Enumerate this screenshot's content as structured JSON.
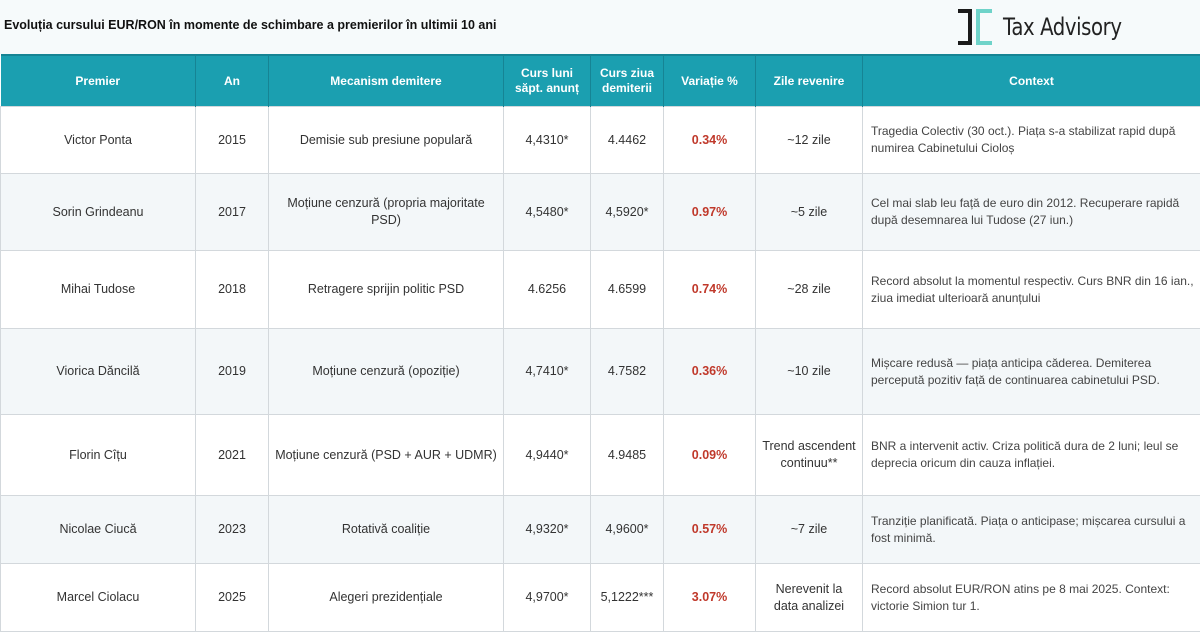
{
  "title": "Evoluția cursului EUR/RON în momente de schimbare a premierilor în ultimii 10 ani",
  "logo": {
    "text": "Tax Advisory",
    "colors": {
      "dark": "#1a1a1a",
      "accent": "#6fd3c9"
    }
  },
  "colors": {
    "header": "#1b9fb0",
    "variation": "#c0392b",
    "alt_row": "#f3f7f9"
  },
  "table": {
    "headers": [
      "Premier",
      "An",
      "Mecanism demitere",
      "Curs luni săpt. anunț",
      "Curs ziua demiterii",
      "Variație %",
      "Zile revenire",
      "Context"
    ],
    "rows": [
      {
        "premier": "Victor Ponta",
        "an": "2015",
        "mecanism": "Demisie sub presiune populară",
        "curs_luni": "4,4310*",
        "curs_ziua": "4.4462",
        "variatie": "0.34%",
        "zile": "~12 zile",
        "context": "Tragedia Colectiv (30 oct.). Piața s-a stabilizat rapid după numirea Cabinetului Cioloș"
      },
      {
        "premier": "Sorin Grindeanu",
        "an": "2017",
        "mecanism": "Moțiune cenzură (propria majoritate PSD)",
        "curs_luni": "4,5480*",
        "curs_ziua": "4,5920*",
        "variatie": "0.97%",
        "zile": "~5 zile",
        "context": "Cel mai slab leu față de euro din 2012. Recuperare rapidă după desemnarea lui Tudose (27 iun.)"
      },
      {
        "premier": "Mihai Tudose",
        "an": "2018",
        "mecanism": "Retragere sprijin politic PSD",
        "curs_luni": "4.6256",
        "curs_ziua": "4.6599",
        "variatie": "0.74%",
        "zile": "~28 zile",
        "context": "Record absolut la momentul respectiv. Curs BNR din 16 ian., ziua imediat ulterioară anunțului"
      },
      {
        "premier": "Viorica Dăncilă",
        "an": "2019",
        "mecanism": "Moțiune cenzură (opoziție)",
        "curs_luni": "4,7410*",
        "curs_ziua": "4.7582",
        "variatie": "0.36%",
        "zile": "~10 zile",
        "context": "Mișcare redusă — piața anticipa căderea. Demiterea percepută pozitiv față de continuarea cabinetului PSD."
      },
      {
        "premier": "Florin Cîțu",
        "an": "2021",
        "mecanism": "Moțiune cenzură (PSD + AUR + UDMR)",
        "curs_luni": "4,9440*",
        "curs_ziua": "4.9485",
        "variatie": "0.09%",
        "zile": "Trend ascendent continuu**",
        "context": "BNR a intervenit activ. Criza politică dura de 2 luni; leul se deprecia oricum din cauza inflației."
      },
      {
        "premier": "Nicolae Ciucă",
        "an": "2023",
        "mecanism": "Rotativă coaliție",
        "curs_luni": "4,9320*",
        "curs_ziua": "4,9600*",
        "variatie": "0.57%",
        "zile": "~7 zile",
        "context": "Tranziție planificată. Piața o anticipase; mișcarea cursului a fost minimă."
      },
      {
        "premier": "Marcel Ciolacu",
        "an": "2025",
        "mecanism": "Alegeri prezidențiale",
        "curs_luni": "4,9700*",
        "curs_ziua": "5,1222***",
        "variatie": "3.07%",
        "zile": "Nerevenit la data analizei",
        "context": "Record absolut EUR/RON atins pe 8 mai 2025. Context: victorie Simion tur 1."
      }
    ]
  }
}
